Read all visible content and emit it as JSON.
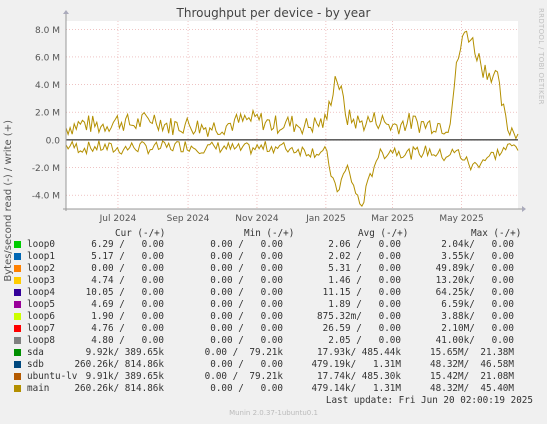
{
  "title": "Throughput per device - by year",
  "side_label": "RRDTOOL / TOBI OETIKER",
  "ylabel": "Bytes/second read (-) / write (+)",
  "legend_header": {
    "cur": "Cur (-/+)",
    "min": "Min (-/+)",
    "avg": "Avg (-/+)",
    "max": "Max (-/+)"
  },
  "legend": [
    {
      "name": "loop0",
      "color": "#00cc00",
      "cur": "6.29 /   0.00",
      "min": "0.00 /   0.00",
      "avg": "2.06 /   0.00",
      "max": "2.04k/   0.00"
    },
    {
      "name": "loop1",
      "color": "#0066b3",
      "cur": "5.17 /   0.00",
      "min": "0.00 /   0.00",
      "avg": "2.02 /   0.00",
      "max": "3.55k/   0.00"
    },
    {
      "name": "loop2",
      "color": "#ff8000",
      "cur": "0.00 /   0.00",
      "min": "0.00 /   0.00",
      "avg": "5.31 /   0.00",
      "max": "49.89k/   0.00"
    },
    {
      "name": "loop3",
      "color": "#ffcc00",
      "cur": "4.74 /   0.00",
      "min": "0.00 /   0.00",
      "avg": "1.46 /   0.00",
      "max": "13.20k/   0.00"
    },
    {
      "name": "loop4",
      "color": "#330099",
      "cur": "10.05 /   0.00",
      "min": "0.00 /   0.00",
      "avg": "11.15 /   0.00",
      "max": "64.25k/   0.00"
    },
    {
      "name": "loop5",
      "color": "#990099",
      "cur": "4.69 /   0.00",
      "min": "0.00 /   0.00",
      "avg": "1.89 /   0.00",
      "max": "6.59k/   0.00"
    },
    {
      "name": "loop6",
      "color": "#ccff00",
      "cur": "1.90 /   0.00",
      "min": "0.00 /   0.00",
      "avg": "875.32m/   0.00",
      "max": "3.88k/   0.00"
    },
    {
      "name": "loop7",
      "color": "#ff0000",
      "cur": "4.76 /   0.00",
      "min": "0.00 /   0.00",
      "avg": "26.59 /   0.00",
      "max": "2.10M/   0.00"
    },
    {
      "name": "loop8",
      "color": "#808080",
      "cur": "4.80 /   0.00",
      "min": "0.00 /   0.00",
      "avg": "2.05 /   0.00",
      "max": "41.00k/   0.00"
    },
    {
      "name": "sda",
      "color": "#008f00",
      "cur": "9.92k/ 389.65k",
      "min": "0.00 /  79.21k",
      "avg": "17.93k/ 485.44k",
      "max": "15.65M/  21.38M"
    },
    {
      "name": "sdb",
      "color": "#00487d",
      "cur": "260.26k/ 814.86k",
      "min": "0.00 /   0.00",
      "avg": "479.19k/   1.31M",
      "max": "48.32M/  46.58M"
    },
    {
      "name": "ubuntu-lv",
      "color": "#b35a00",
      "cur": "9.91k/ 389.65k",
      "min": "0.00 /  79.21k",
      "avg": "17.74k/ 485.30k",
      "max": "15.42M/  21.08M"
    },
    {
      "name": "main",
      "color": "#b38f00",
      "cur": "260.26k/ 814.86k",
      "min": "0.00 /   0.00",
      "avg": "479.14k/   1.31M",
      "max": "48.32M/  45.40M"
    }
  ],
  "last_update": "Last update: Fri Jun 20 02:00:19 2025",
  "footer": "Munin 2.0.37-1ubuntu0.1",
  "chart_data": {
    "type": "line",
    "title": "Throughput per device - by year",
    "ylabel": "Bytes/second read (-) / write (+)",
    "ylim": [
      -5.0,
      8.6
    ],
    "yticks": [
      -4.0,
      -2.0,
      0.0,
      2.0,
      4.0,
      6.0,
      8.0
    ],
    "ytick_labels": [
      "-4.0 M",
      "-2.0 M",
      "0.0",
      "2.0 M",
      "4.0 M",
      "6.0 M",
      "8.0 M"
    ],
    "xlim": [
      "2024-05-16",
      "2025-06-20"
    ],
    "xticks": [
      "2024-07-01",
      "2024-09-01",
      "2024-11-01",
      "2025-01-01",
      "2025-03-01",
      "2025-05-01"
    ],
    "xtick_labels": [
      "Jul 2024",
      "Sep 2024",
      "Nov 2024",
      "Jan 2025",
      "Mar 2025",
      "May 2025"
    ],
    "grid": true,
    "series": [
      {
        "name": "main",
        "color": "#b38f00",
        "x": [
          "2024-05-16",
          "2024-06-01",
          "2024-06-15",
          "2024-07-01",
          "2024-07-15",
          "2024-08-01",
          "2024-08-15",
          "2024-09-01",
          "2024-09-15",
          "2024-10-01",
          "2024-10-15",
          "2024-11-01",
          "2024-11-15",
          "2024-12-01",
          "2024-12-15",
          "2025-01-01",
          "2025-01-10",
          "2025-01-20",
          "2025-02-01",
          "2025-02-15",
          "2025-03-01",
          "2025-03-15",
          "2025-04-01",
          "2025-04-10",
          "2025-04-15",
          "2025-04-20",
          "2025-04-28",
          "2025-05-05",
          "2025-05-10",
          "2025-05-20",
          "2025-06-01",
          "2025-06-10",
          "2025-06-20"
        ],
        "write": [
          0.9,
          1.2,
          1.0,
          1.4,
          1.1,
          1.6,
          1.0,
          1.1,
          0.9,
          1.0,
          1.3,
          1.5,
          1.1,
          1.2,
          1.0,
          1.3,
          4.8,
          1.6,
          1.2,
          1.5,
          1.0,
          1.3,
          1.1,
          1.2,
          1.0,
          1.1,
          6.0,
          8.0,
          7.2,
          5.2,
          4.6,
          0.9,
          0.6
        ],
        "read": [
          -0.4,
          -0.6,
          -0.5,
          -0.7,
          -0.5,
          -0.6,
          -0.5,
          -0.4,
          -0.6,
          -0.5,
          -0.7,
          -0.6,
          -0.5,
          -0.6,
          -0.8,
          -0.9,
          -3.8,
          -2.0,
          -4.9,
          -1.2,
          -0.7,
          -1.0,
          -0.8,
          -1.0,
          -1.2,
          -1.0,
          -0.9,
          -1.5,
          -2.0,
          -1.4,
          -1.0,
          -0.6,
          -0.4
        ]
      }
    ]
  }
}
